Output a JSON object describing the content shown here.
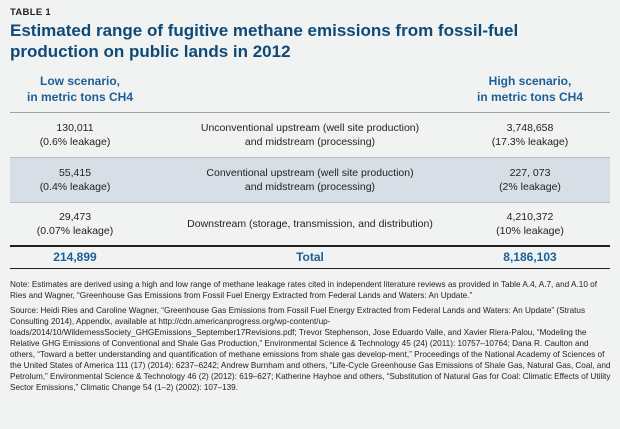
{
  "table": {
    "label": "TABLE 1",
    "title": "Estimated range of fugitive methane emissions from fossil-fuel production on public lands in 2012",
    "headers": {
      "low_line1": "Low scenario,",
      "low_line2": "in metric tons CH4",
      "high_line1": "High scenario,",
      "high_line2": "in metric tons CH4"
    },
    "rows": [
      {
        "low_value": "130,011",
        "low_leak": "(0.6% leakage)",
        "desc_line1": "Unconventional upstream (well site production)",
        "desc_line2": "and midstream (processing)",
        "high_value": "3,748,658",
        "high_leak": "(17.3% leakage)"
      },
      {
        "low_value": "55,415",
        "low_leak": "(0.4% leakage)",
        "desc_line1": "Conventional upstream (well site production)",
        "desc_line2": "and midstream (processing)",
        "high_value": "227, 073",
        "high_leak": "(2% leakage)"
      },
      {
        "low_value": "29,473",
        "low_leak": "(0.07% leakage)",
        "desc_line1": "Downstream (storage, transmission, and distribution)",
        "desc_line2": "",
        "high_value": "4,210,372",
        "high_leak": "(10% leakage)"
      }
    ],
    "total": {
      "low": "214,899",
      "label": "Total",
      "high": "8,186,103"
    },
    "note": "Note: Estimates are derived using a high and low range of methane leakage rates cited in independent literature reviews as provided in Table A.4, A.7, and A.10 of Ries and Wagner, “Greenhouse Gas Emissions from Fossil Fuel Energy Extracted from Federal Lands and Waters: An Update.”",
    "source": "Source: Heidi Ries and Caroline Wagner, “Greenhouse Gas Emissions from Fossil Fuel Energy Extracted from Federal Lands and Waters: An Update” (Stratus Consulting 2014), Appendix, available at http://cdn.americanprogress.org/wp-content/up-loads/2014/10/WildernessSociety_GHGEmissions_September17Revisions.pdf; Trevor Stephenson, Jose Eduardo Valle, and Xavier Riera-Palou, “Modeling the Relative GHG Emissions of Conventional and Shale Gas Production,” Environmental Science & Technology 45 (24) (2011): 10757–10764; Dana R. Caulton and others, “Toward a better understanding and quantification of methane emissions from shale gas develop-ment,” Proceedings of the National Academy of Sciences of the United States of America 111 (17) (2014): 6237–6242; Andrew Burnham and others, “Life-Cycle Greenhouse Gas Emissions of Shale Gas, Natural Gas, Coal, and Petrolum,” Environmental Science & Technology 46 (2) (2012): 619–627; Katherine Hayhoe and others, “Substitution of Natural Gas for Coal: Climatic Effects of Utility Sector Emissions,” Climatic Change 54 (1–2) (2002): 107–139."
  },
  "colors": {
    "title": "#0e4a78",
    "header": "#1c5f96",
    "background": "#f1f2f2",
    "row_shade": "#d7dee5"
  }
}
